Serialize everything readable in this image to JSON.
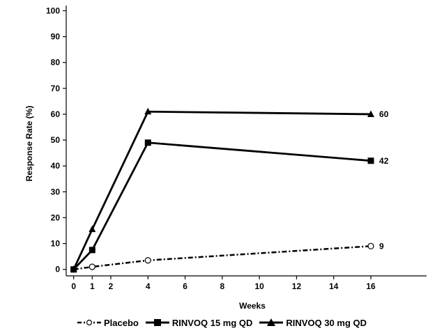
{
  "chart_data": {
    "type": "line",
    "ylabel": "Response Rate (%)",
    "xlabel": "Weeks",
    "xlim": [
      -0.4,
      19
    ],
    "ylim": [
      -2.5,
      102
    ],
    "xticks": [
      0,
      1,
      2,
      4,
      6,
      8,
      10,
      12,
      14,
      16
    ],
    "yticks": [
      0,
      10,
      20,
      30,
      40,
      50,
      60,
      70,
      80,
      90,
      100
    ],
    "grid": false,
    "legend_position": "bottom",
    "series": [
      {
        "name": "Placebo",
        "marker": "open-circle",
        "line_style": "dash-dot",
        "x": [
          0,
          1,
          4,
          16
        ],
        "values": [
          0,
          1,
          3.5,
          9
        ],
        "end_label": "9"
      },
      {
        "name": "RINVOQ 15 mg QD",
        "marker": "filled-square",
        "line_style": "solid",
        "x": [
          0,
          1,
          4,
          16
        ],
        "values": [
          0,
          7.5,
          49,
          42
        ],
        "end_label": "42"
      },
      {
        "name": "RINVOQ 30 mg QD",
        "marker": "filled-triangle",
        "line_style": "solid",
        "x": [
          0,
          1,
          4,
          16
        ],
        "values": [
          0,
          15.5,
          61,
          60
        ],
        "end_label": "60"
      }
    ]
  }
}
